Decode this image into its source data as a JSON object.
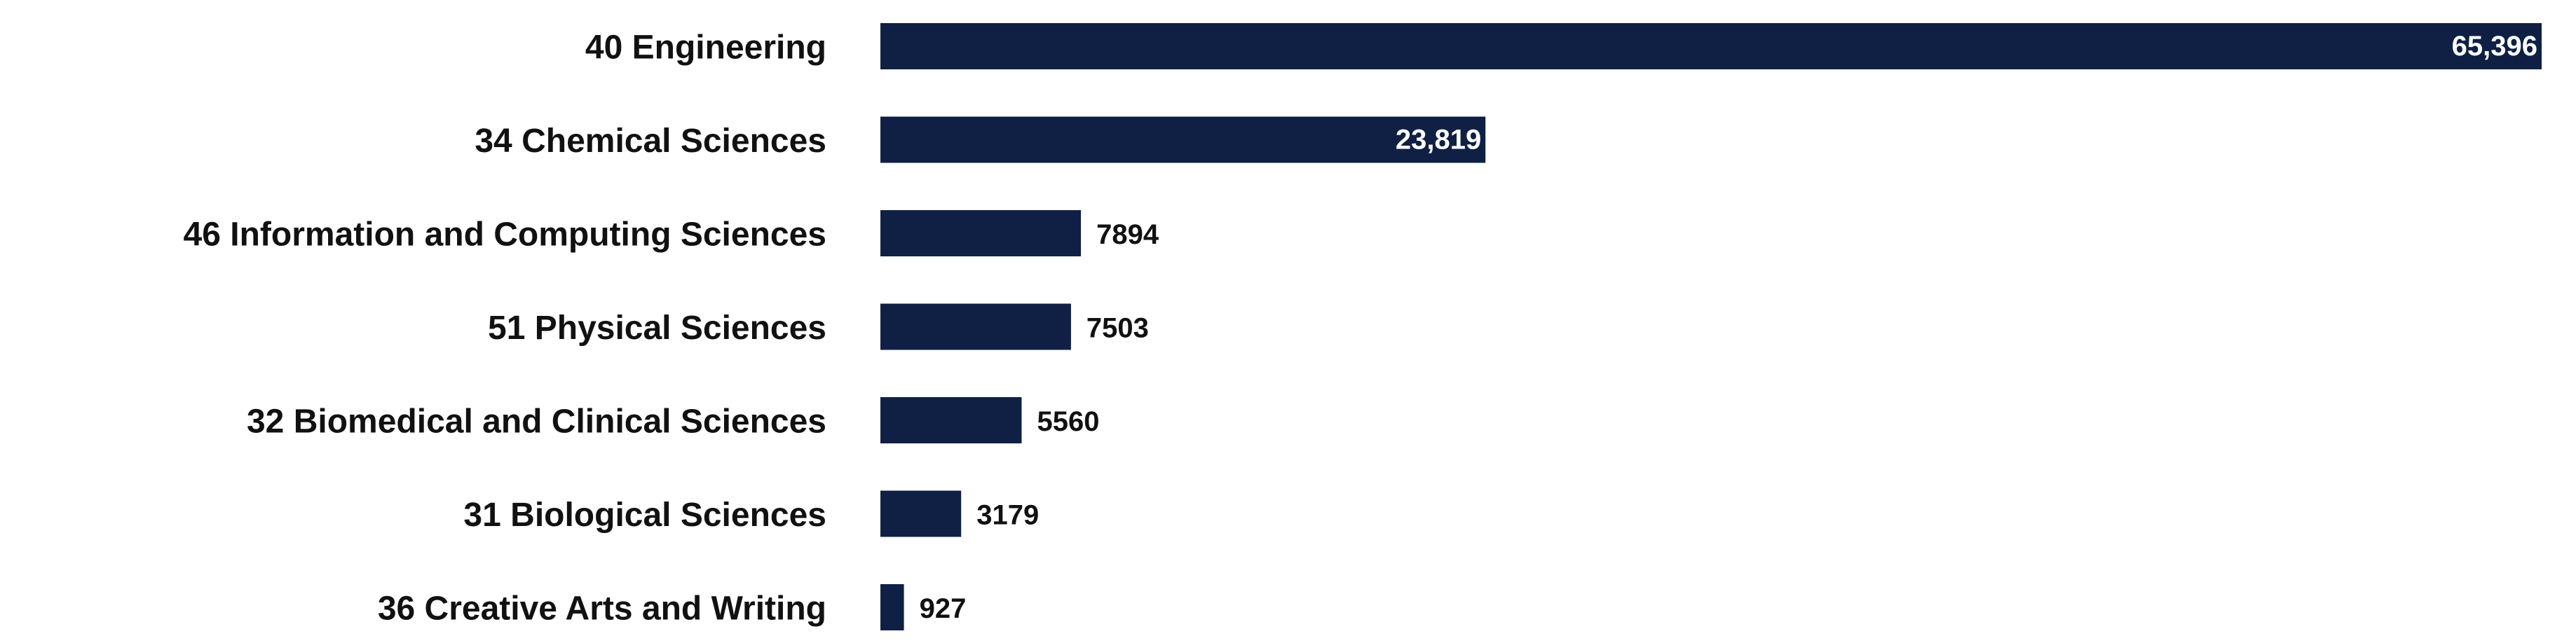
{
  "chart_data": {
    "type": "bar",
    "orientation": "horizontal",
    "categories": [
      "40 Engineering",
      "34 Chemical Sciences",
      "46 Information and Computing Sciences",
      "51 Physical Sciences",
      "32 Biomedical and Clinical Sciences",
      "31 Biological Sciences",
      "36 Creative Arts and Writing"
    ],
    "values": [
      65396,
      23819,
      7894,
      7503,
      5560,
      3179,
      927
    ],
    "value_labels": [
      "65,396",
      "23,819",
      "7894",
      "7503",
      "5560",
      "3179",
      "927"
    ],
    "color": "#0f2044"
  }
}
